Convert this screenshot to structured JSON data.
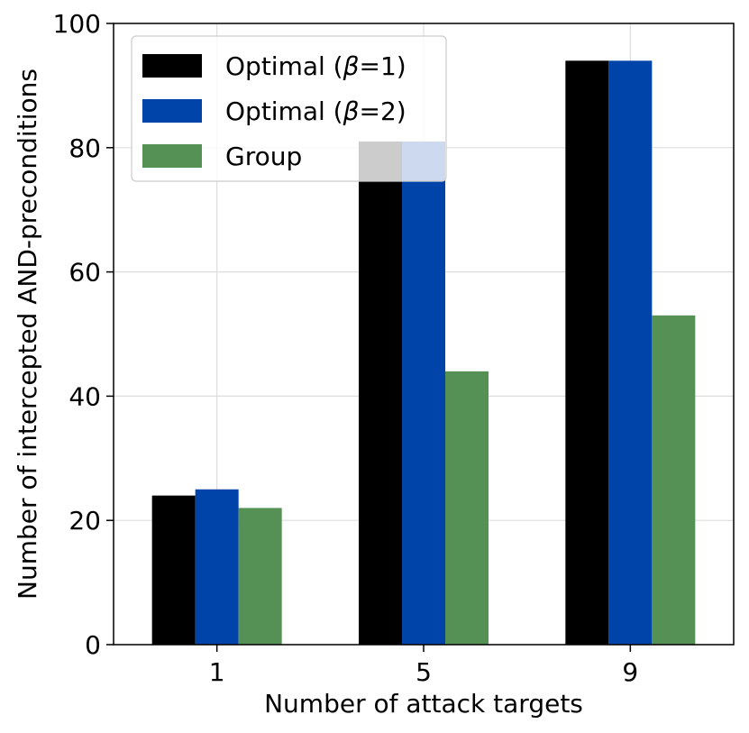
{
  "chart_data": {
    "type": "bar",
    "categories": [
      "1",
      "5",
      "9"
    ],
    "series": [
      {
        "name": "Optimal (β=1)",
        "name_prefix": "Optimal (",
        "name_symbol": "β",
        "name_suffix": "=1)",
        "values": [
          24,
          81,
          94
        ],
        "color": "#000000"
      },
      {
        "name": "Optimal (β=2)",
        "name_prefix": "Optimal (",
        "name_symbol": "β",
        "name_suffix": "=2)",
        "values": [
          25,
          81,
          94
        ],
        "color": "#0044aa"
      },
      {
        "name": "Group",
        "name_prefix": "Group",
        "name_symbol": "",
        "name_suffix": "",
        "values": [
          22,
          44,
          53
        ],
        "color": "#559155"
      }
    ],
    "xlabel": "Number of attack targets",
    "ylabel": "Number of intercepted AND-preconditions",
    "ylim": [
      0,
      100
    ],
    "yticks": [
      0,
      20,
      40,
      60,
      80,
      100
    ],
    "grid": true,
    "legend_position": "top-left"
  }
}
